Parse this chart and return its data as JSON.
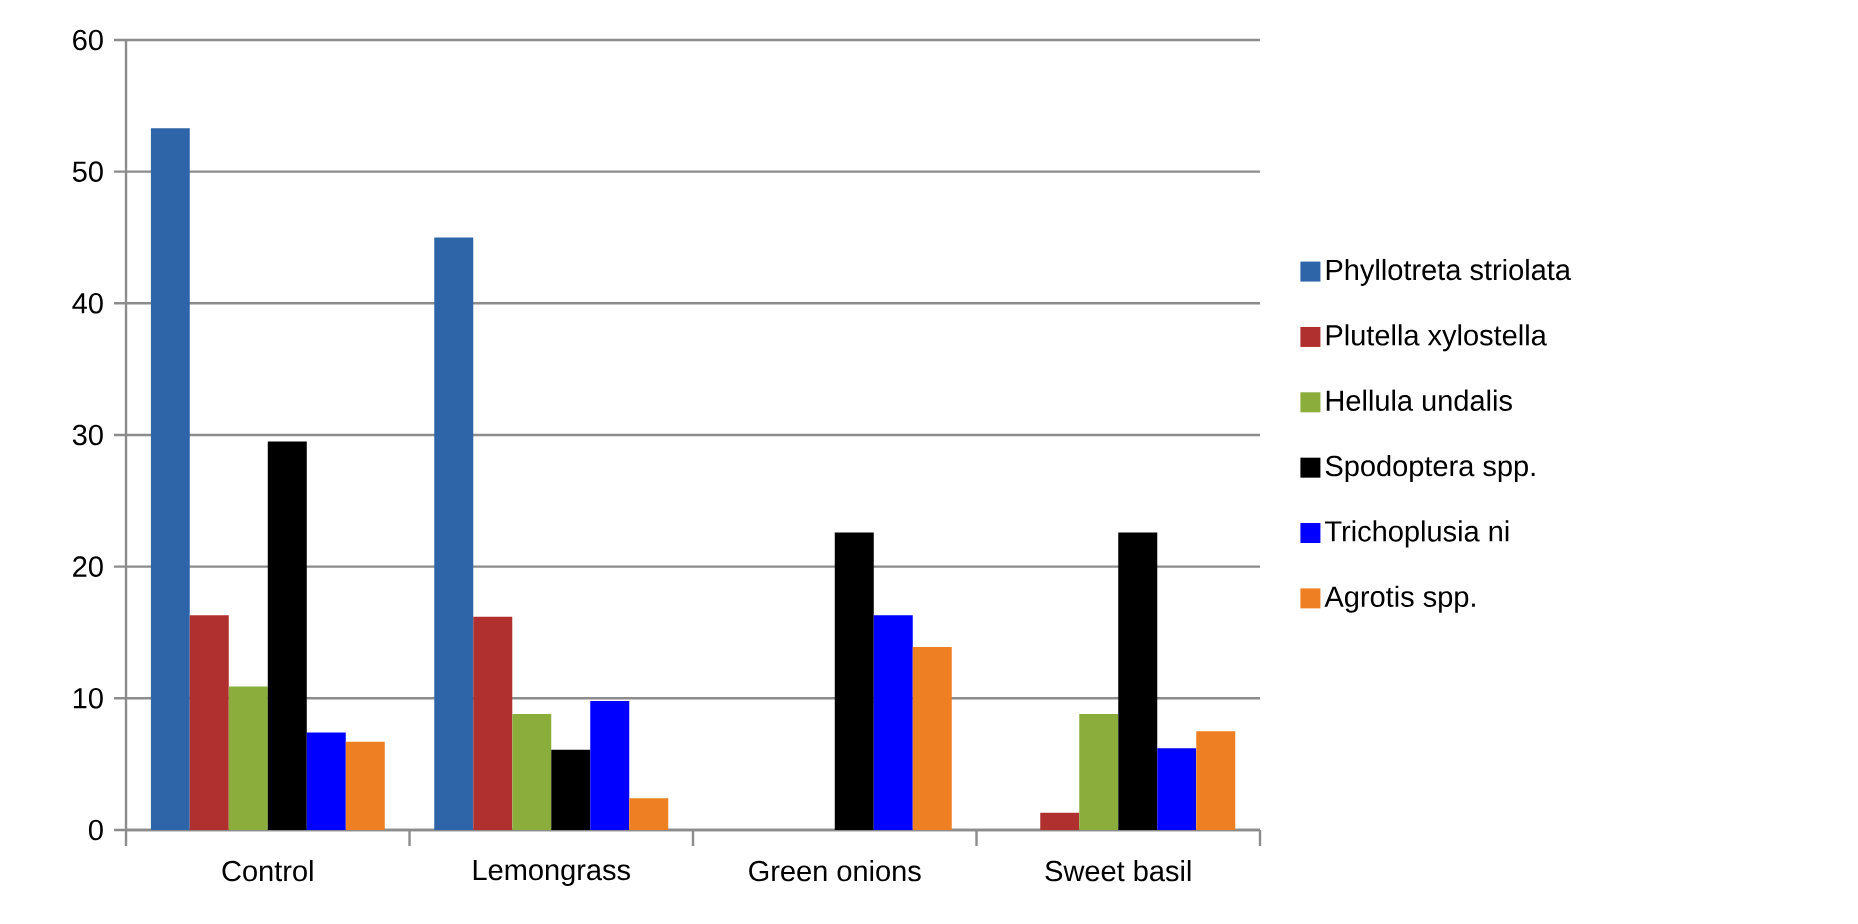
{
  "chart_data": {
    "type": "bar",
    "categories": [
      "Control",
      "Lemongrass",
      "Green onions",
      "Sweet basil"
    ],
    "series": [
      {
        "name": "Phyllotreta striolata",
        "color": "#2e64a8",
        "values": [
          53.3,
          45.0,
          0,
          0
        ]
      },
      {
        "name": "Plutella xylostella",
        "color": "#b03030",
        "values": [
          16.3,
          16.2,
          0,
          1.3
        ]
      },
      {
        "name": "Hellula undalis",
        "color": "#8aad3c",
        "values": [
          10.9,
          8.8,
          0,
          8.8
        ]
      },
      {
        "name": "Spodoptera spp.",
        "color": "#000000",
        "values": [
          29.5,
          6.1,
          22.6,
          22.6
        ]
      },
      {
        "name": "Trichoplusia ni",
        "color": "#0000ff",
        "values": [
          7.4,
          9.8,
          16.3,
          6.2
        ]
      },
      {
        "name": "Agrotis spp.",
        "color": "#ee7f22",
        "values": [
          6.7,
          2.4,
          13.9,
          7.5
        ]
      }
    ],
    "ylim": [
      0,
      60
    ],
    "yticks": [
      0,
      10,
      20,
      30,
      40,
      50,
      60
    ],
    "grid": "y",
    "legend": "right"
  }
}
